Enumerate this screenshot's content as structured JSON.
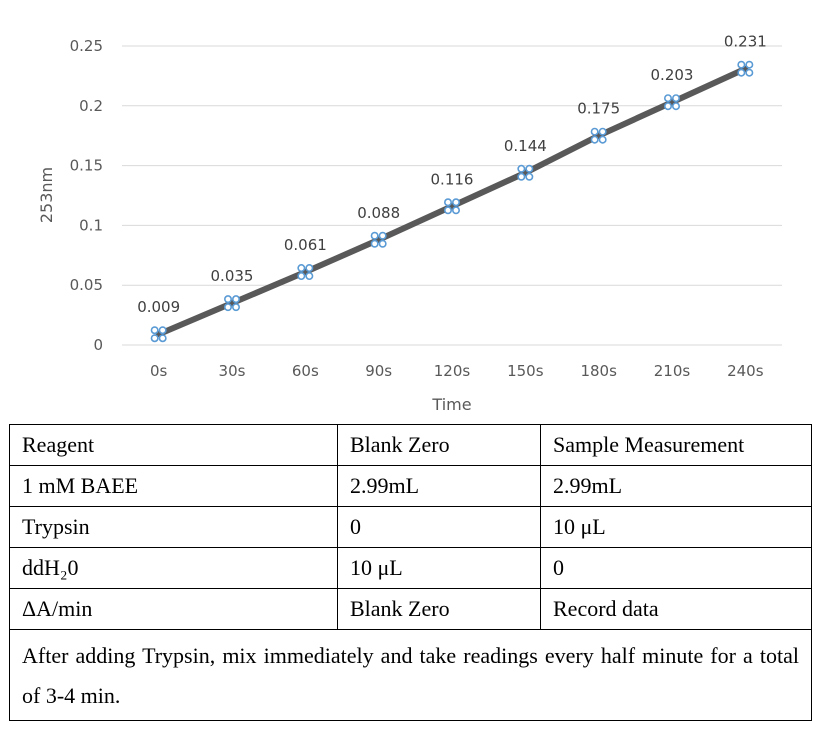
{
  "chart_data": {
    "type": "line",
    "categories": [
      "0s",
      "30s",
      "60s",
      "90s",
      "120s",
      "150s",
      "180s",
      "210s",
      "240s"
    ],
    "values": [
      0.009,
      0.035,
      0.061,
      0.088,
      0.116,
      0.144,
      0.175,
      0.203,
      0.231
    ],
    "data_labels": [
      "0.009",
      "0.035",
      "0.061",
      "0.088",
      "0.116",
      "0.144",
      "0.175",
      "0.203",
      "0.231"
    ],
    "y_ticks": [
      "0",
      "0.05",
      "0.1",
      "0.15",
      "0.2",
      "0.25"
    ],
    "ylim": [
      0,
      0.25
    ],
    "xlabel": "Time",
    "ylabel": "253nm",
    "grid": true,
    "colors": {
      "line": "#595959",
      "marker": "#5b9bd5",
      "grid": "#d9d9d9"
    }
  },
  "table": {
    "rows": [
      [
        "Reagent",
        "Blank Zero",
        "Sample Measurement"
      ],
      [
        "1 mM BAEE",
        "2.99mL",
        "2.99mL"
      ],
      [
        "Trypsin",
        "0",
        "10 μL"
      ],
      [
        "ddH₂0",
        "10 μL",
        "0"
      ],
      [
        "ΔA/min",
        "Blank Zero",
        "Record data"
      ]
    ],
    "note": "After adding Trypsin, mix immediately and take readings every half minute for a total of 3-4 min."
  }
}
